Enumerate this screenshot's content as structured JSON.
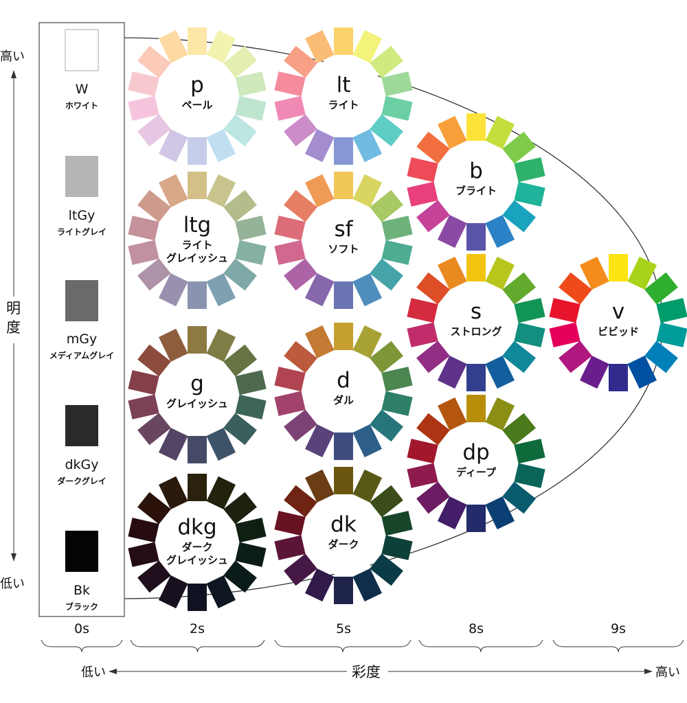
{
  "lightness_axis": {
    "title": "明度",
    "high": "高い",
    "low": "低い"
  },
  "chroma_axis": {
    "title": "彩度",
    "high": "高い",
    "low": "低い"
  },
  "saturation_groups": [
    "0s",
    "2s",
    "5s",
    "8s",
    "9s"
  ],
  "grays": [
    {
      "code": "W",
      "name": "ホワイト",
      "color": "#ffffff"
    },
    {
      "code": "ltGy",
      "name": "ライトグレイ",
      "color": "#b5b5b5"
    },
    {
      "code": "mGy",
      "name": "メディアムグレイ",
      "color": "#6a6a6a"
    },
    {
      "code": "dkGy",
      "name": "ダークグレイ",
      "color": "#2a2a2a"
    },
    {
      "code": "Bk",
      "name": "ブラック",
      "color": "#050505"
    }
  ],
  "tones": [
    {
      "code": "p",
      "name": [
        "ペール"
      ],
      "colors": [
        "#fdd9a3",
        "#fde7a8",
        "#f3f3b0",
        "#e3efb0",
        "#cfe8bc",
        "#bfe5cf",
        "#bde6e3",
        "#c0def0",
        "#c5cdea",
        "#d1c6e6",
        "#e6c6e3",
        "#f6c5dd",
        "#f8c8cf",
        "#fbcab8"
      ]
    },
    {
      "code": "lt",
      "name": [
        "ライト"
      ],
      "colors": [
        "#fbbc75",
        "#fcd36a",
        "#f3f27a",
        "#d0ea7f",
        "#9fd99a",
        "#6ccfa4",
        "#5ecdc4",
        "#6fbbe2",
        "#8797d6",
        "#a38dcf",
        "#cb8cc9",
        "#f08ab5",
        "#f58c9c",
        "#f8a085"
      ]
    },
    {
      "code": "b",
      "name": [
        "ブライト"
      ],
      "colors": [
        "#f7a03a",
        "#fde23a",
        "#c6de3d",
        "#7fcc4c",
        "#2fb36a",
        "#1eb39a",
        "#19a3bd",
        "#2b82c6",
        "#5a55a8",
        "#8a4aa3",
        "#c5449a",
        "#e8407c",
        "#ee4b58",
        "#f26f40"
      ]
    },
    {
      "code": "v",
      "name": [
        "ビビッド"
      ],
      "colors": [
        "#f38c1c",
        "#fce312",
        "#a9d21b",
        "#2fae2f",
        "#009c6b",
        "#009c99",
        "#007fb8",
        "#0051a2",
        "#322a8c",
        "#6a1e8e",
        "#b0177f",
        "#e4005a",
        "#e8142c",
        "#ef4a1a"
      ]
    },
    {
      "code": "ltg",
      "name": [
        "ライト",
        "グレイッシュ"
      ],
      "colors": [
        "#d8a787",
        "#d3bf88",
        "#c8c48e",
        "#b3bd8b",
        "#95b398",
        "#86b0a2",
        "#7fa9a6",
        "#7fa0b0",
        "#8a93b0",
        "#9990ad",
        "#ae92a8",
        "#c191a1",
        "#c5919a",
        "#cd9c8c"
      ]
    },
    {
      "code": "sf",
      "name": [
        "ソフト"
      ],
      "colors": [
        "#ef9b56",
        "#f1c757",
        "#d9d561",
        "#a8c963",
        "#6eb27b",
        "#4eac92",
        "#46a4a9",
        "#4f8dbd",
        "#6a74b2",
        "#8767ac",
        "#ad64a6",
        "#d2678f",
        "#dc6d78",
        "#e67e63"
      ]
    },
    {
      "code": "s",
      "name": [
        "ストロング"
      ],
      "colors": [
        "#e98a21",
        "#f2c40f",
        "#b8c51d",
        "#63a92d",
        "#129455",
        "#128f7e",
        "#11889a",
        "#135f9e",
        "#323f8c",
        "#5e3289",
        "#922e83",
        "#c02d6a",
        "#d42b3e",
        "#de4e27"
      ]
    },
    {
      "code": "g",
      "name": [
        "グレイッシュ"
      ],
      "colors": [
        "#8e5d3c",
        "#8d7a43",
        "#7f7d46",
        "#667443",
        "#4d6a4f",
        "#3e6656",
        "#3a5f5d",
        "#3d5468",
        "#454a67",
        "#534565",
        "#684660",
        "#7c4257",
        "#843f48",
        "#8c4b3d"
      ]
    },
    {
      "code": "d",
      "name": [
        "ダル"
      ],
      "colors": [
        "#c47a33",
        "#c59f2f",
        "#a8a235",
        "#7d9638",
        "#4c8550",
        "#2d7f68",
        "#27767c",
        "#2d5f89",
        "#3f4c80",
        "#5a437b",
        "#7c4275",
        "#a1436b",
        "#b04450",
        "#bb5a3d"
      ]
    },
    {
      "code": "dp",
      "name": [
        "ディープ"
      ],
      "colors": [
        "#b4560e",
        "#b78e09",
        "#8a8e15",
        "#4a7a1b",
        "#0e6a3a",
        "#0b645a",
        "#0a5a6e",
        "#0b3f73",
        "#232b6a",
        "#441e68",
        "#6c1c62",
        "#8f1a4d",
        "#a1182c",
        "#ad3513"
      ]
    },
    {
      "code": "dkg",
      "name": [
        "ダーク",
        "グレイッシュ"
      ],
      "colors": [
        "#2b1a0c",
        "#2a220d",
        "#22220d",
        "#1c220f",
        "#0f1f12",
        "#0b1d16",
        "#0b1a1a",
        "#0d1621",
        "#111221",
        "#18101f",
        "#1f0f1c",
        "#240d17",
        "#260b10",
        "#2a120b"
      ]
    },
    {
      "code": "dk",
      "name": [
        "ダーク"
      ],
      "colors": [
        "#6a3d14",
        "#6b5610",
        "#585817",
        "#3a4d1a",
        "#17452a",
        "#0c4038",
        "#0b3c46",
        "#0f2e4b",
        "#1f244a",
        "#31194a",
        "#461845",
        "#5b1536",
        "#681322",
        "#6f2414"
      ]
    }
  ]
}
